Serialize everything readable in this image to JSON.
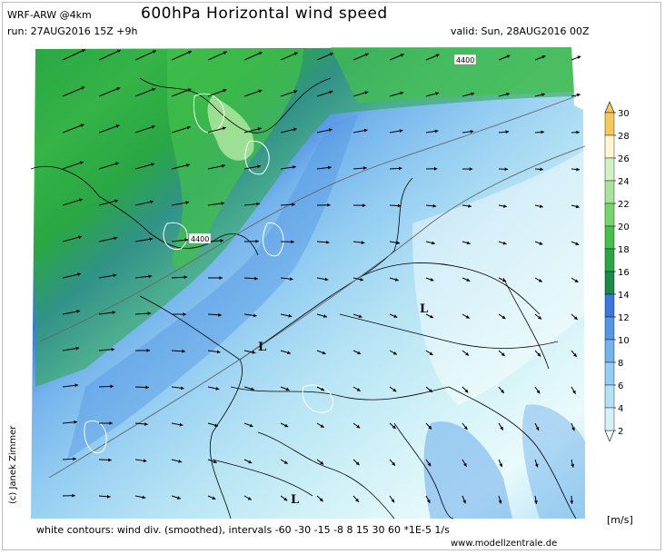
{
  "header": {
    "model": "WRF-ARW @4km",
    "title": "600hPa Horizontal wind speed",
    "run": "run: 27AUG2016 15Z +9h",
    "valid": "valid: Sun, 28AUG2016 00Z"
  },
  "copyright": "(c) Janek Zimmer",
  "map": {
    "low_label": "L",
    "lows": [
      {
        "label": "L"
      },
      {
        "label": "L"
      },
      {
        "label": "L"
      }
    ],
    "isohypse_label": "4400",
    "isohypse_labels": [
      "4400",
      "4400"
    ]
  },
  "legend": {
    "unit": "[m/s]",
    "ticks": [
      "2",
      "4",
      "6",
      "8",
      "10",
      "12",
      "14",
      "16",
      "18",
      "20",
      "22",
      "24",
      "26",
      "28",
      "30"
    ],
    "colors": [
      "#ffffff",
      "#d2f2f7",
      "#b4e2f4",
      "#94cdf2",
      "#74b3ec",
      "#5596e4",
      "#3b78dc",
      "#1a8a48",
      "#2aa744",
      "#43c14c",
      "#76d46c",
      "#a7e39a",
      "#d2f0c6",
      "#fff8d2",
      "#f6c85c"
    ]
  },
  "footer": {
    "note": "white contours: wind div. (smoothed), intervals -60 -30 -15 -8 8 15 30 60 *1E-5 1/s",
    "website": "www.modellzentrale.de"
  }
}
